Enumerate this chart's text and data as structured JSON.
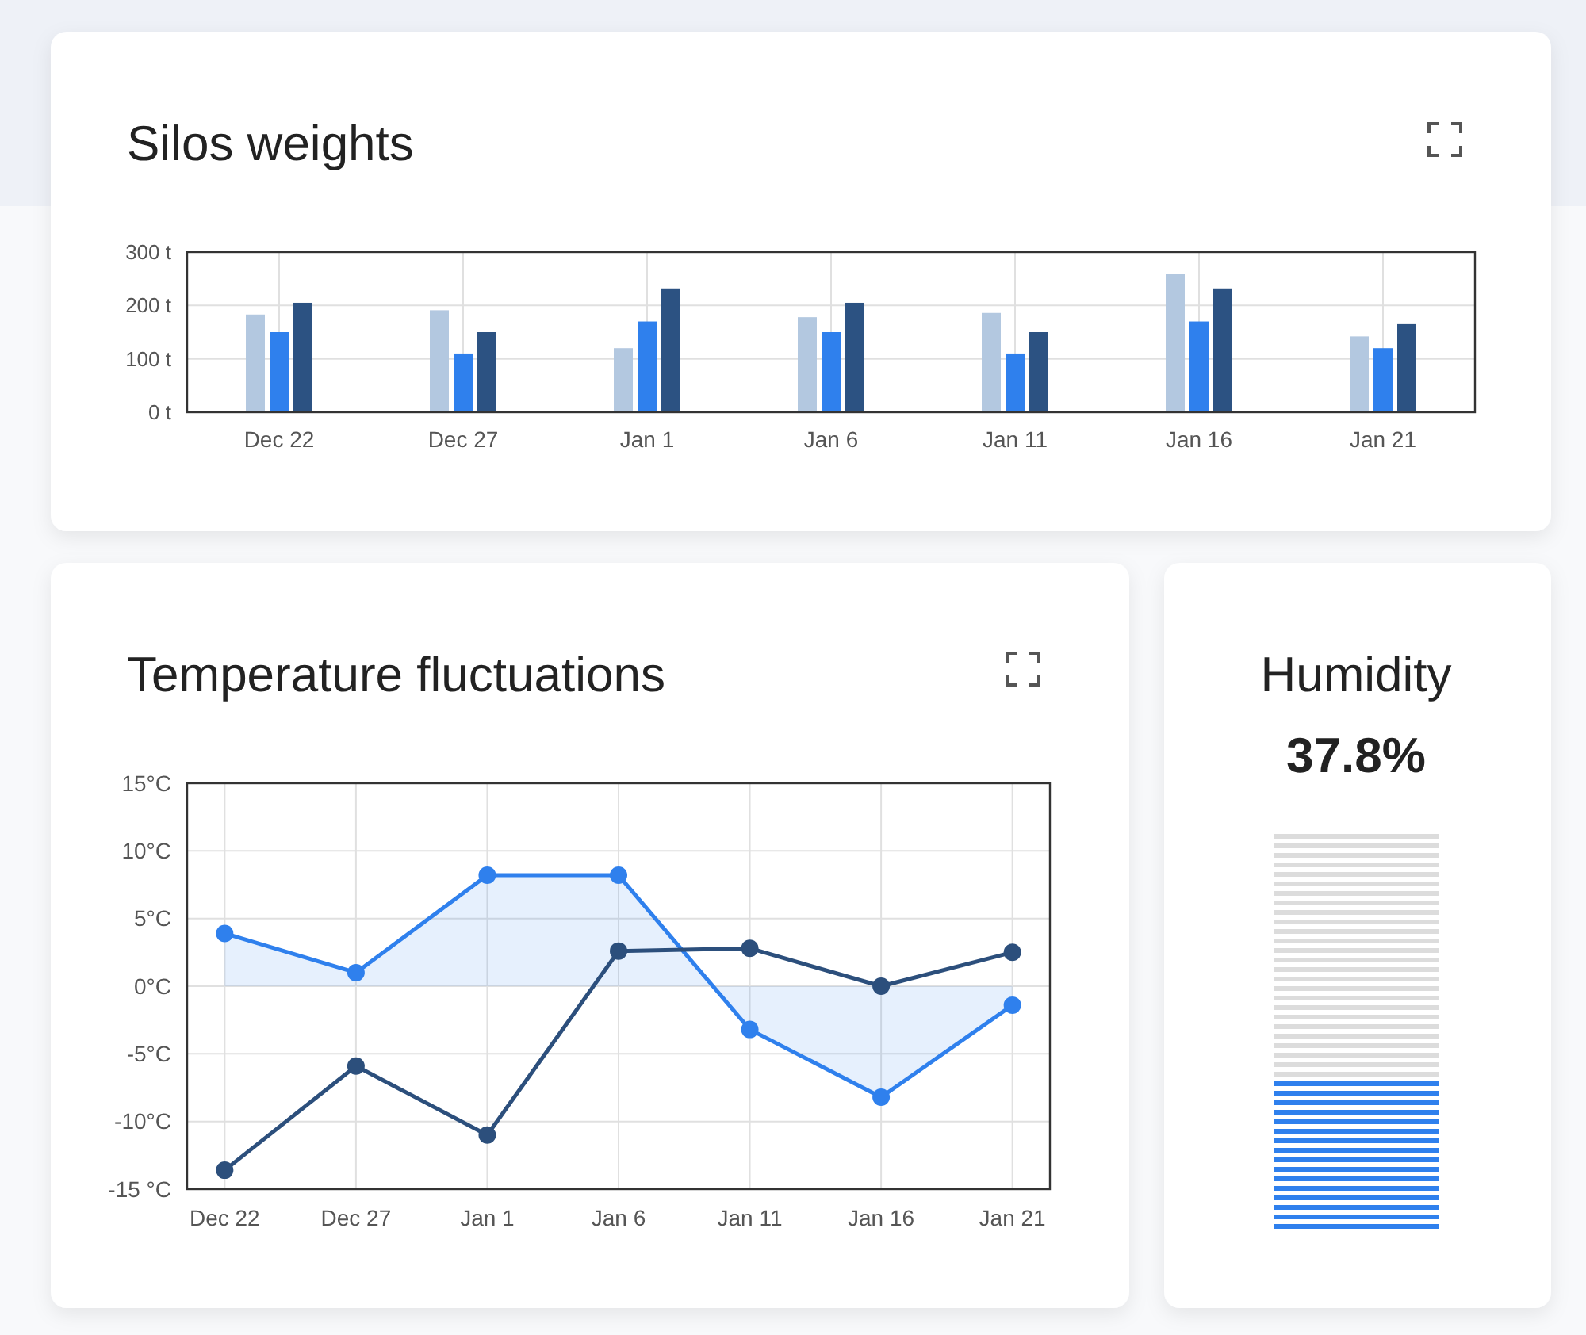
{
  "chart_data": [
    {
      "type": "bar",
      "title": "Silos weights",
      "categories": [
        "Dec 22",
        "Dec 27",
        "Jan 1",
        "Jan 6",
        "Jan 11",
        "Jan 16",
        "Jan 21"
      ],
      "series": [
        {
          "color": "#b3c8e0",
          "values": [
            183,
            191,
            120,
            178,
            186,
            259,
            142
          ]
        },
        {
          "color": "#2f80ed",
          "values": [
            150,
            110,
            170,
            150,
            110,
            170,
            120
          ]
        },
        {
          "color": "#2c5282",
          "values": [
            205,
            150,
            232,
            205,
            150,
            232,
            165
          ]
        }
      ],
      "ylim": [
        0,
        300
      ],
      "yticks": [
        {
          "value": 0,
          "label": "0 t"
        },
        {
          "value": 100,
          "label": "100 t"
        },
        {
          "value": 200,
          "label": "200 t"
        },
        {
          "value": 300,
          "label": "300 t"
        }
      ],
      "grid": true
    },
    {
      "type": "line",
      "title": "Temperature fluctuations",
      "categories": [
        "Dec 22",
        "Dec 27",
        "Jan 1",
        "Jan 6",
        "Jan 11",
        "Jan 16",
        "Jan 21"
      ],
      "series": [
        {
          "type": "area",
          "color": "#2f80ed",
          "values": [
            3.9,
            1.0,
            8.2,
            8.2,
            -3.2,
            -8.2,
            -1.4
          ]
        },
        {
          "type": "line",
          "color": "#2c4f7c",
          "values": [
            -13.6,
            -5.9,
            -11.0,
            2.6,
            2.8,
            0.0,
            2.5
          ]
        }
      ],
      "ylim": [
        -15,
        15
      ],
      "yticks": [
        {
          "value": -15,
          "label": "-15 °C"
        },
        {
          "value": -10,
          "label": "-10°C"
        },
        {
          "value": -5,
          "label": "-5°C"
        },
        {
          "value": 0,
          "label": "0°C"
        },
        {
          "value": 5,
          "label": "5°C"
        },
        {
          "value": 10,
          "label": "10°C"
        },
        {
          "value": 15,
          "label": "15°C"
        }
      ],
      "grid": true,
      "marker": "circle"
    },
    {
      "type": "other",
      "title": "Humidity",
      "values": [
        37.8
      ],
      "value_labels": [
        "37.8%"
      ]
    }
  ]
}
